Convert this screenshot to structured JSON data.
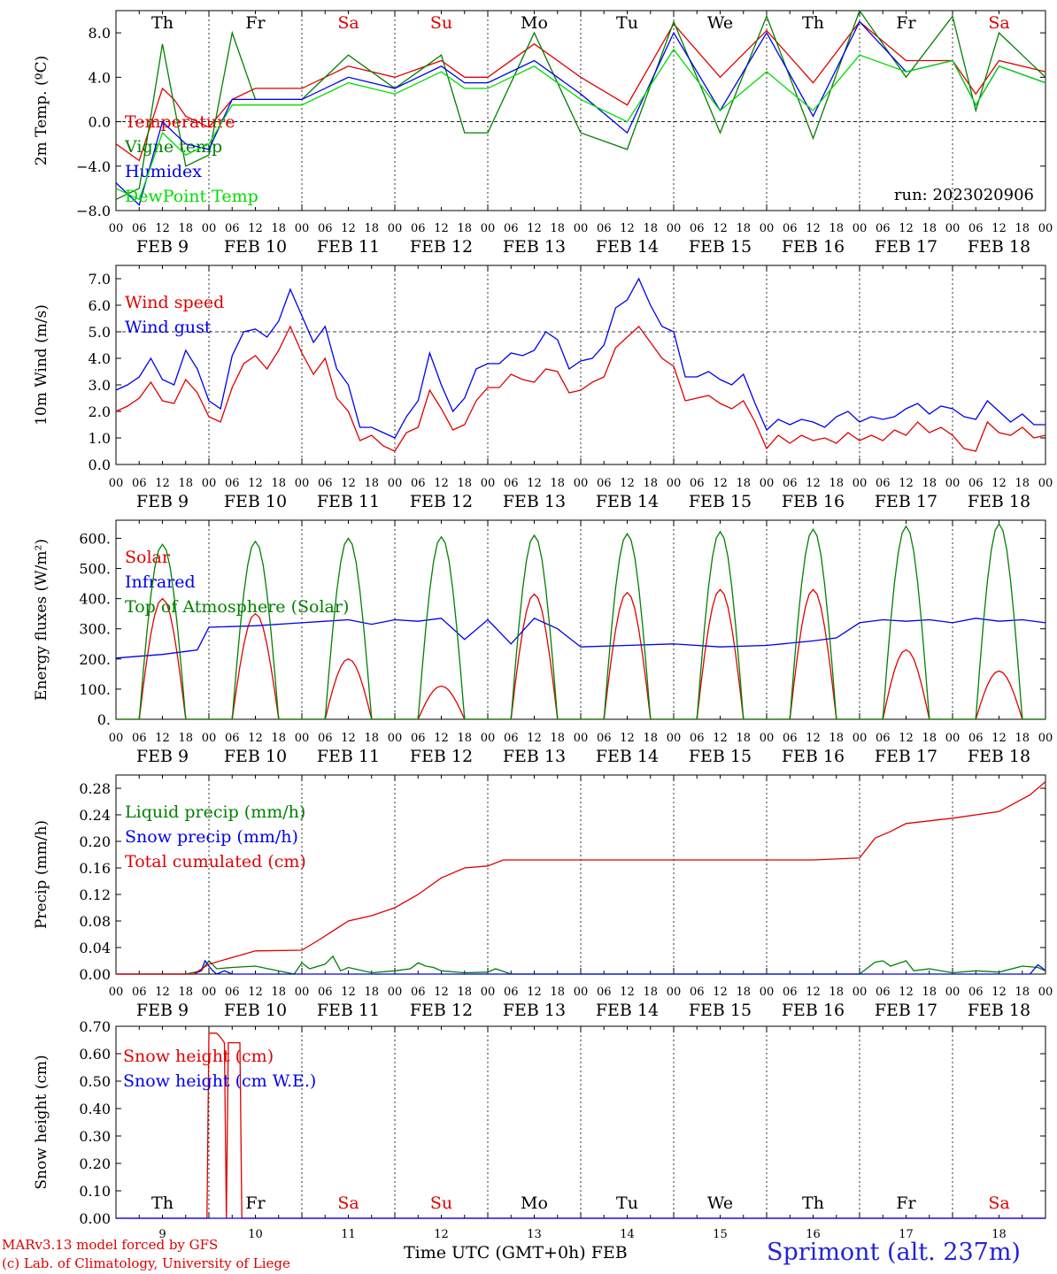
{
  "chart_data": [
    {
      "type": "line",
      "ylabel": "2m Temp. (ºC)",
      "ylim": [
        -8,
        10
      ],
      "yticks": [
        "8.0",
        "4.0",
        "0.0",
        "−4.0",
        "−8.0"
      ],
      "ytick_values": [
        8,
        4,
        0,
        -4,
        -8
      ],
      "reference_line": 0,
      "run_label": "run: 2023020906",
      "series": [
        {
          "name": "Temperature",
          "color": "#e00000",
          "x": [
            0,
            6,
            12,
            15,
            18,
            24,
            30,
            36,
            48,
            60,
            72,
            84,
            90,
            96,
            108,
            120,
            132,
            144,
            156,
            168,
            180,
            192,
            204,
            216,
            222,
            228,
            240
          ],
          "y": [
            -2,
            -3.5,
            3,
            2,
            0.5,
            -0.5,
            2,
            3,
            3,
            5,
            4,
            5.5,
            4,
            4,
            7,
            4,
            1.5,
            8.8,
            4,
            8.2,
            3.5,
            9,
            5.5,
            5.5,
            2.5,
            5.5,
            4.5
          ]
        },
        {
          "name": "Vigne temp",
          "color": "#008000",
          "x": [
            0,
            6,
            12,
            18,
            24,
            30,
            36,
            48,
            60,
            72,
            84,
            90,
            96,
            108,
            120,
            132,
            144,
            156,
            168,
            180,
            192,
            204,
            216,
            222,
            228,
            240
          ],
          "y": [
            -7,
            -6,
            7,
            -4,
            -3,
            8,
            2,
            2,
            6,
            3,
            6,
            -1,
            -1,
            8,
            -1,
            -2.5,
            9,
            -1,
            9.5,
            -1.5,
            10,
            4,
            9.5,
            1,
            8,
            4
          ]
        },
        {
          "name": "Humidex",
          "color": "#0000ee",
          "x": [
            0,
            6,
            12,
            18,
            24,
            30,
            36,
            48,
            60,
            72,
            84,
            90,
            96,
            108,
            120,
            132,
            144,
            156,
            168,
            180,
            192,
            204,
            216,
            222,
            228,
            240
          ],
          "y": [
            -5.5,
            -7.5,
            0,
            -2,
            -2.5,
            2,
            2,
            2,
            4,
            3,
            5,
            3.5,
            3.5,
            5.5,
            2.5,
            -1,
            8,
            1,
            8,
            0.5,
            9,
            4.5,
            5.5,
            1.5,
            5,
            3.5
          ]
        },
        {
          "name": "DewPoint Temp",
          "color": "#00dd00",
          "x": [
            0,
            6,
            12,
            18,
            24,
            30,
            36,
            48,
            60,
            72,
            84,
            90,
            96,
            108,
            120,
            132,
            144,
            156,
            168,
            180,
            192,
            204,
            216,
            222,
            228,
            240
          ],
          "y": [
            -6,
            -7,
            -1,
            -3,
            -2,
            1.5,
            1.5,
            1.5,
            3.5,
            2.5,
            4.5,
            3,
            3,
            5,
            2,
            0,
            6.5,
            1,
            4.5,
            1,
            6,
            4.5,
            5.5,
            1.5,
            5,
            3.5
          ]
        }
      ]
    },
    {
      "type": "line",
      "ylabel": "10m Wind (m/s)",
      "ylim": [
        0,
        7.5
      ],
      "yticks": [
        "7.0",
        "6.0",
        "5.0",
        "4.0",
        "3.0",
        "2.0",
        "1.0",
        "0.0"
      ],
      "ytick_values": [
        7,
        6,
        5,
        4,
        3,
        2,
        1,
        0
      ],
      "reference_line": 5,
      "series": [
        {
          "name": "Wind speed",
          "color": "#e00000",
          "x": [
            0,
            3,
            6,
            9,
            12,
            15,
            18,
            21,
            24,
            27,
            30,
            33,
            36,
            39,
            42,
            45,
            48,
            51,
            54,
            57,
            60,
            63,
            66,
            69,
            72,
            75,
            78,
            81,
            84,
            87,
            90,
            93,
            96,
            99,
            102,
            105,
            108,
            111,
            114,
            117,
            120,
            123,
            126,
            129,
            132,
            135,
            138,
            141,
            144,
            147,
            150,
            153,
            156,
            159,
            162,
            165,
            168,
            171,
            174,
            177,
            180,
            183,
            186,
            189,
            192,
            195,
            198,
            201,
            204,
            207,
            210,
            213,
            216,
            219,
            222,
            225,
            228,
            231,
            234,
            237,
            240
          ],
          "y": [
            2,
            2.2,
            2.5,
            3.1,
            2.4,
            2.3,
            3.2,
            2.7,
            1.8,
            1.6,
            2.9,
            3.8,
            4.1,
            3.6,
            4.3,
            5.2,
            4.2,
            3.4,
            4,
            2.5,
            2,
            0.9,
            1.1,
            0.7,
            0.5,
            1.2,
            1.4,
            2.8,
            2.1,
            1.3,
            1.5,
            2.4,
            2.9,
            2.9,
            3.4,
            3.2,
            3.1,
            3.6,
            3.5,
            2.7,
            2.8,
            3.1,
            3.3,
            4.4,
            4.8,
            5.2,
            4.6,
            4,
            3.7,
            2.4,
            2.5,
            2.6,
            2.3,
            2.1,
            2.4,
            1.6,
            0.6,
            1.1,
            0.8,
            1.1,
            0.9,
            1,
            0.8,
            1.2,
            0.9,
            1.1,
            0.9,
            1.3,
            1.1,
            1.6,
            1.2,
            1.4,
            1.1,
            0.6,
            0.5,
            1.6,
            1.2,
            1.1,
            1.4,
            1,
            1.1
          ]
        },
        {
          "name": "Wind gust",
          "color": "#0000ee",
          "x": [
            0,
            3,
            6,
            9,
            12,
            15,
            18,
            21,
            24,
            27,
            30,
            33,
            36,
            39,
            42,
            45,
            48,
            51,
            54,
            57,
            60,
            63,
            66,
            69,
            72,
            75,
            78,
            81,
            84,
            87,
            90,
            93,
            96,
            99,
            102,
            105,
            108,
            111,
            114,
            117,
            120,
            123,
            126,
            129,
            132,
            135,
            138,
            141,
            144,
            147,
            150,
            153,
            156,
            159,
            162,
            165,
            168,
            171,
            174,
            177,
            180,
            183,
            186,
            189,
            192,
            195,
            198,
            201,
            204,
            207,
            210,
            213,
            216,
            219,
            222,
            225,
            228,
            231,
            234,
            237,
            240
          ],
          "y": [
            2.8,
            3,
            3.3,
            4,
            3.2,
            3,
            4.3,
            3.6,
            2.4,
            2.1,
            4.1,
            5,
            5.1,
            4.8,
            5.4,
            6.6,
            5.6,
            4.6,
            5.2,
            3.6,
            3,
            1.4,
            1.4,
            1.2,
            1,
            1.8,
            2.4,
            4.2,
            3,
            2,
            2.5,
            3.6,
            3.8,
            3.8,
            4.2,
            4.1,
            4.3,
            5,
            4.7,
            3.6,
            3.9,
            4,
            4.5,
            5.9,
            6.2,
            7,
            6,
            5.2,
            5,
            3.3,
            3.3,
            3.5,
            3.2,
            3,
            3.4,
            2.3,
            1.3,
            1.7,
            1.5,
            1.7,
            1.6,
            1.4,
            1.8,
            2,
            1.6,
            1.8,
            1.7,
            1.8,
            2.1,
            2.3,
            1.9,
            2.2,
            2.1,
            1.8,
            1.7,
            2.4,
            2,
            1.6,
            1.9,
            1.5,
            1.5
          ]
        }
      ]
    },
    {
      "type": "line",
      "ylabel": "Energy fluxes (W/m²)",
      "ylim": [
        0,
        660
      ],
      "yticks": [
        "600.",
        "500.",
        "400.",
        "300.",
        "200.",
        "100.",
        "0."
      ],
      "ytick_values": [
        600,
        500,
        400,
        300,
        200,
        100,
        0
      ],
      "series": [
        {
          "name": "Solar",
          "color": "#e00000",
          "shape": "daily_peaks",
          "peak_hours": [
            12,
            36,
            60,
            84,
            108,
            132,
            156,
            180,
            204,
            228
          ],
          "y": [
            400,
            350,
            200,
            110,
            415,
            420,
            430,
            430,
            230,
            160
          ]
        },
        {
          "name": "Infrared",
          "color": "#0000ee",
          "x": [
            0,
            12,
            18,
            21,
            24,
            36,
            48,
            54,
            60,
            66,
            72,
            78,
            84,
            90,
            96,
            102,
            108,
            114,
            120,
            132,
            144,
            156,
            168,
            180,
            186,
            192,
            198,
            204,
            210,
            216,
            222,
            228,
            234,
            240
          ],
          "y": [
            203,
            215,
            225,
            230,
            305,
            310,
            320,
            325,
            330,
            315,
            330,
            325,
            335,
            265,
            330,
            250,
            335,
            300,
            240,
            245,
            250,
            240,
            245,
            260,
            270,
            320,
            330,
            325,
            330,
            320,
            335,
            325,
            330,
            320
          ]
        },
        {
          "name": "Top of Atmosphere (Solar)",
          "color": "#008000",
          "shape": "daily_peaks",
          "peak_hours": [
            12,
            36,
            60,
            84,
            108,
            132,
            156,
            180,
            204,
            228
          ],
          "y": [
            580,
            590,
            600,
            605,
            610,
            615,
            622,
            630,
            640,
            648
          ]
        }
      ]
    },
    {
      "type": "line",
      "ylabel": "Precip (mm/h)",
      "ylim": [
        0,
        0.3
      ],
      "yticks": [
        "0.28",
        "0.24",
        "0.20",
        "0.16",
        "0.12",
        "0.08",
        "0.04",
        "0.00"
      ],
      "ytick_values": [
        0.28,
        0.24,
        0.2,
        0.16,
        0.12,
        0.08,
        0.04,
        0
      ],
      "series": [
        {
          "name": "Liquid precip (mm/h)",
          "color": "#008000",
          "x": [
            0,
            18,
            22,
            24,
            26,
            30,
            36,
            46,
            48,
            50,
            54,
            56,
            58,
            60,
            66,
            72,
            76,
            78,
            80,
            82,
            84,
            90,
            96,
            98,
            102,
            108,
            120,
            150,
            180,
            192,
            196,
            198,
            200,
            204,
            206,
            210,
            216,
            222,
            228,
            234,
            238,
            240
          ],
          "y": [
            0,
            0,
            0.005,
            0.02,
            0.008,
            0.01,
            0.012,
            0,
            0.017,
            0.008,
            0.015,
            0.027,
            0.005,
            0.01,
            0.002,
            0.005,
            0.008,
            0.017,
            0.012,
            0.01,
            0.005,
            0.002,
            0.003,
            0.008,
            0,
            0,
            0,
            0,
            0,
            0,
            0.018,
            0.02,
            0.012,
            0.02,
            0.005,
            0.008,
            0.002,
            0.005,
            0.003,
            0.012,
            0.01,
            0.005
          ]
        },
        {
          "name": "Snow precip (mm/h)",
          "color": "#0000ee",
          "x": [
            0,
            20,
            22,
            23,
            24,
            25,
            26,
            28,
            30,
            236,
            238,
            239,
            240
          ],
          "y": [
            0,
            0,
            0.005,
            0.02,
            0.012,
            0.005,
            0,
            0.005,
            0,
            0,
            0.014,
            0.01,
            0.005
          ]
        },
        {
          "name": "Total cumulated (cm)",
          "color": "#e00000",
          "x": [
            0,
            20,
            24,
            30,
            36,
            48,
            52,
            56,
            60,
            66,
            72,
            78,
            84,
            90,
            96,
            100,
            120,
            150,
            180,
            192,
            196,
            200,
            204,
            216,
            228,
            236,
            240
          ],
          "y": [
            0,
            0,
            0.015,
            0.025,
            0.035,
            0.036,
            0.05,
            0.065,
            0.08,
            0.088,
            0.1,
            0.12,
            0.145,
            0.16,
            0.163,
            0.172,
            0.172,
            0.172,
            0.172,
            0.175,
            0.205,
            0.215,
            0.227,
            0.235,
            0.245,
            0.27,
            0.29
          ]
        }
      ]
    },
    {
      "type": "line",
      "ylabel": "Snow height (cm)",
      "ylim": [
        0,
        0.7
      ],
      "yticks": [
        "0.70",
        "0.60",
        "0.50",
        "0.40",
        "0.30",
        "0.20",
        "0.10",
        "0.00"
      ],
      "ytick_values": [
        0.7,
        0.6,
        0.5,
        0.4,
        0.3,
        0.2,
        0.1,
        0
      ],
      "series": [
        {
          "name": "Snow height (cm)",
          "color": "#e00000",
          "x": [
            0,
            23.5,
            24,
            26,
            27,
            28,
            28.5,
            29,
            32,
            32.5,
            33,
            240
          ],
          "y": [
            0,
            0,
            0.675,
            0.675,
            0.66,
            0.64,
            0,
            0.64,
            0.64,
            0,
            0,
            0
          ]
        },
        {
          "name": "Snow height (cm W.E.)",
          "color": "#0000ee",
          "x": [
            0,
            240
          ],
          "y": [
            0,
            0
          ]
        }
      ]
    }
  ],
  "time_axis": {
    "hour_ticks": [
      "00",
      "06",
      "12",
      "18"
    ],
    "last_tick": "00",
    "dates": [
      "FEB  9",
      "FEB 10",
      "FEB 11",
      "FEB 12",
      "FEB 13",
      "FEB 14",
      "FEB 15",
      "FEB 16",
      "FEB 17",
      "FEB 18"
    ],
    "weekdays": [
      "Th",
      "Fr",
      "Sa",
      "Su",
      "Mo",
      "Tu",
      "We",
      "Th",
      "Fr",
      "Sa"
    ],
    "weekday_colors": [
      "#000000",
      "#000000",
      "#e00000",
      "#e00000",
      "#000000",
      "#000000",
      "#000000",
      "#000000",
      "#000000",
      "#e00000"
    ],
    "day_numbers": [
      "9",
      "10",
      "11",
      "12",
      "13",
      "14",
      "15",
      "16",
      "17",
      "18"
    ]
  },
  "footer": {
    "model": "MARv3.13 model forced by GFS",
    "copyright": "(c) Lab. of Climatology, University of Liege",
    "xlabel": "Time UTC (GMT+0h) FEB",
    "station": "Sprimont (alt. 237m)"
  }
}
